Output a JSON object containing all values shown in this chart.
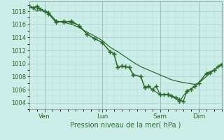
{
  "title": "Pression niveau de la mer( hPa )",
  "bg_color": "#cceee8",
  "grid_color": "#b0d8d0",
  "line_color": "#2d6a2d",
  "marker_color": "#2d6a2d",
  "ylim": [
    1003.0,
    1019.5
  ],
  "yticks": [
    1004,
    1006,
    1008,
    1010,
    1012,
    1014,
    1016,
    1018
  ],
  "day_labels": [
    "Ven",
    "Lun",
    "Sam",
    "Dim"
  ],
  "day_positions": [
    0.08,
    0.38,
    0.68,
    0.88
  ],
  "xlim": [
    0,
    1.0
  ],
  "series1_x": [
    0.0,
    0.02,
    0.04,
    0.06,
    0.08,
    0.1,
    0.14,
    0.18,
    0.22,
    0.26,
    0.3,
    0.34,
    0.38,
    0.42,
    0.46,
    0.5,
    0.54,
    0.58,
    0.62,
    0.66,
    0.7,
    0.74,
    0.78,
    0.82,
    0.86,
    0.88,
    0.9,
    0.92,
    0.94,
    0.96,
    0.98,
    1.0
  ],
  "series1_y": [
    1018.7,
    1018.5,
    1018.0,
    1018.2,
    1018.0,
    1017.8,
    1016.5,
    1016.3,
    1016.0,
    1015.5,
    1014.8,
    1014.2,
    1013.5,
    1012.5,
    1011.8,
    1011.0,
    1010.2,
    1009.5,
    1009.0,
    1008.5,
    1008.0,
    1007.5,
    1007.2,
    1007.0,
    1006.8,
    1007.0,
    1007.5,
    1008.0,
    1008.5,
    1009.0,
    1009.5,
    1010.0
  ],
  "series2_x": [
    0.0,
    0.02,
    0.04,
    0.06,
    0.08,
    0.1,
    0.14,
    0.18,
    0.22,
    0.26,
    0.3,
    0.34,
    0.38,
    0.42,
    0.44,
    0.46,
    0.48,
    0.5,
    0.52,
    0.54,
    0.58,
    0.6,
    0.62,
    0.64,
    0.66,
    0.68,
    0.7,
    0.72,
    0.74,
    0.76,
    0.78,
    0.8,
    0.82,
    0.84,
    0.86,
    0.88,
    0.92,
    0.94,
    0.96,
    0.98,
    1.0
  ],
  "series2_y": [
    1018.7,
    1018.5,
    1018.8,
    1018.3,
    1018.0,
    1017.6,
    1016.3,
    1016.5,
    1016.3,
    1015.8,
    1014.5,
    1013.8,
    1013.2,
    1011.8,
    1011.5,
    1009.4,
    1009.6,
    1009.5,
    1009.4,
    1008.3,
    1008.0,
    1006.3,
    1006.5,
    1006.0,
    1006.5,
    1005.2,
    1005.3,
    1005.3,
    1005.0,
    1004.8,
    1004.5,
    1004.2,
    1005.8,
    1006.0,
    1006.5,
    1007.0,
    1008.5,
    1008.6,
    1009.0,
    1009.5,
    1009.8
  ],
  "series3_x": [
    0.0,
    0.04,
    0.08,
    0.1,
    0.14,
    0.18,
    0.22,
    0.26,
    0.3,
    0.34,
    0.38,
    0.42,
    0.44,
    0.46,
    0.48,
    0.5,
    0.52,
    0.54,
    0.58,
    0.6,
    0.62,
    0.64,
    0.68,
    0.72,
    0.74,
    0.78,
    0.82,
    0.86,
    0.88,
    0.92,
    0.96,
    1.0
  ],
  "series3_y": [
    1018.7,
    1018.5,
    1018.0,
    1017.8,
    1016.5,
    1016.3,
    1016.5,
    1015.8,
    1014.5,
    1013.8,
    1013.2,
    1011.8,
    1011.5,
    1009.4,
    1009.6,
    1009.5,
    1009.4,
    1008.3,
    1008.0,
    1006.3,
    1006.5,
    1006.0,
    1005.2,
    1005.3,
    1005.0,
    1004.2,
    1005.8,
    1006.5,
    1007.0,
    1008.5,
    1009.0,
    1009.8
  ]
}
